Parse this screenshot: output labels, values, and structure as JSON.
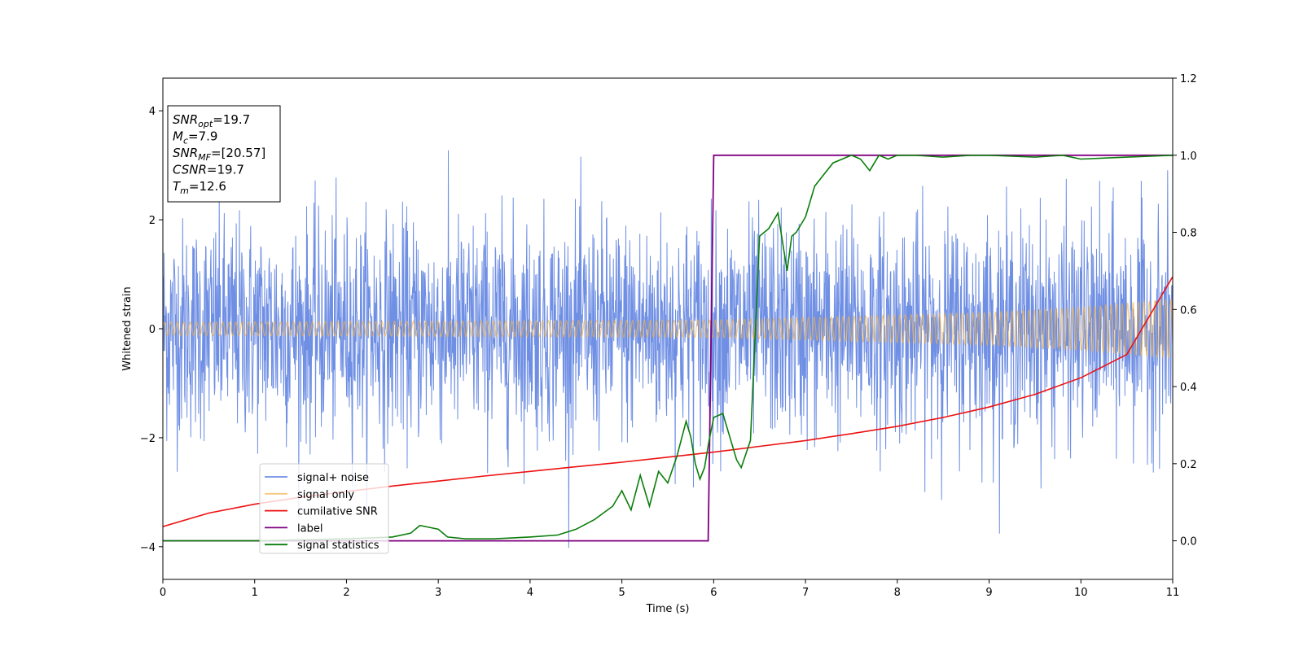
{
  "chart_data": {
    "type": "line",
    "xlabel": "Time (s)",
    "ylabel": "Whitened strain",
    "xlim": [
      0,
      11
    ],
    "ylim": [
      -4.6,
      4.6
    ],
    "y2lim": [
      -0.1,
      1.2
    ],
    "x_ticks": [
      0,
      1,
      2,
      3,
      4,
      5,
      6,
      7,
      8,
      9,
      10,
      11
    ],
    "y_ticks": [
      -4,
      -2,
      0,
      2,
      4
    ],
    "y2_ticks": [
      "0.0",
      "0.2",
      "0.4",
      "0.6",
      "0.8",
      "1.0",
      "1.2"
    ],
    "grid": false,
    "legend_position": "lower-left",
    "info_box": [
      {
        "main": "SNR",
        "sub": "opt",
        "rest": "=19.7"
      },
      {
        "main": "M",
        "sub": "c",
        "rest": "=7.9"
      },
      {
        "main": "SNR",
        "sub": "MF",
        "rest": "=[20.57]"
      },
      {
        "main": "CSNR",
        "sub": "",
        "rest": "=19.7"
      },
      {
        "main": "T",
        "sub": "m",
        "rest": "=12.6"
      }
    ],
    "series": [
      {
        "name": "signal+ noise",
        "color": "#6f8fe4",
        "axis": "left",
        "kind": "noise",
        "amplitude_range": [
          -4.15,
          3.92
        ],
        "typical_sigma": 1.0
      },
      {
        "name": "signal only",
        "color": "#f5b041",
        "axis": "left",
        "kind": "chirp",
        "amplitude": [
          [
            0,
            0.12
          ],
          [
            6,
            0.16
          ],
          [
            9,
            0.3
          ],
          [
            10,
            0.4
          ],
          [
            11,
            0.55
          ]
        ],
        "cycles_per_second": [
          [
            0,
            14
          ],
          [
            11,
            17
          ]
        ]
      },
      {
        "name": "cumilative SNR",
        "color": "#ee1111",
        "axis": "right",
        "kind": "line",
        "x": [
          0,
          0.5,
          1,
          1.5,
          2,
          2.5,
          3,
          3.5,
          4,
          4.5,
          5,
          5.5,
          6,
          6.5,
          7,
          7.5,
          8,
          8.5,
          9,
          9.5,
          10,
          10.5,
          11
        ],
        "y": [
          0.037,
          0.072,
          0.095,
          0.113,
          0.128,
          0.142,
          0.155,
          0.168,
          0.18,
          0.192,
          0.204,
          0.217,
          0.23,
          0.245,
          0.26,
          0.278,
          0.297,
          0.32,
          0.347,
          0.38,
          0.423,
          0.483,
          0.685
        ]
      },
      {
        "name": "label",
        "color": "#800080",
        "axis": "right",
        "kind": "line",
        "x": [
          0,
          5.94,
          6.0,
          11
        ],
        "y": [
          0.0,
          0.0,
          1.0,
          1.0
        ]
      },
      {
        "name": "signal statistics",
        "color": "#0a7d0a",
        "axis": "right",
        "kind": "line",
        "x": [
          0,
          1,
          2,
          2.5,
          2.7,
          2.8,
          2.9,
          3.0,
          3.1,
          3.3,
          3.6,
          4.0,
          4.3,
          4.5,
          4.7,
          4.9,
          5.0,
          5.1,
          5.2,
          5.3,
          5.4,
          5.5,
          5.6,
          5.7,
          5.75,
          5.8,
          5.85,
          5.9,
          5.95,
          6.0,
          6.1,
          6.2,
          6.25,
          6.3,
          6.4,
          6.5,
          6.6,
          6.7,
          6.8,
          6.85,
          6.9,
          7.0,
          7.1,
          7.2,
          7.3,
          7.4,
          7.5,
          7.6,
          7.7,
          7.8,
          7.9,
          8.0,
          8.2,
          8.5,
          8.8,
          9.0,
          9.5,
          9.8,
          10.0,
          10.5,
          11
        ],
        "y": [
          0.0,
          0.0,
          0.005,
          0.01,
          0.02,
          0.04,
          0.035,
          0.03,
          0.01,
          0.005,
          0.005,
          0.01,
          0.015,
          0.03,
          0.055,
          0.09,
          0.13,
          0.08,
          0.17,
          0.09,
          0.18,
          0.15,
          0.22,
          0.31,
          0.27,
          0.2,
          0.16,
          0.19,
          0.26,
          0.32,
          0.33,
          0.25,
          0.21,
          0.19,
          0.26,
          0.79,
          0.81,
          0.85,
          0.7,
          0.79,
          0.8,
          0.84,
          0.92,
          0.95,
          0.98,
          0.99,
          1.0,
          0.99,
          0.96,
          1.0,
          0.99,
          1.0,
          1.0,
          0.995,
          1.0,
          1.0,
          0.995,
          1.0,
          0.99,
          0.995,
          1.0
        ]
      }
    ]
  }
}
